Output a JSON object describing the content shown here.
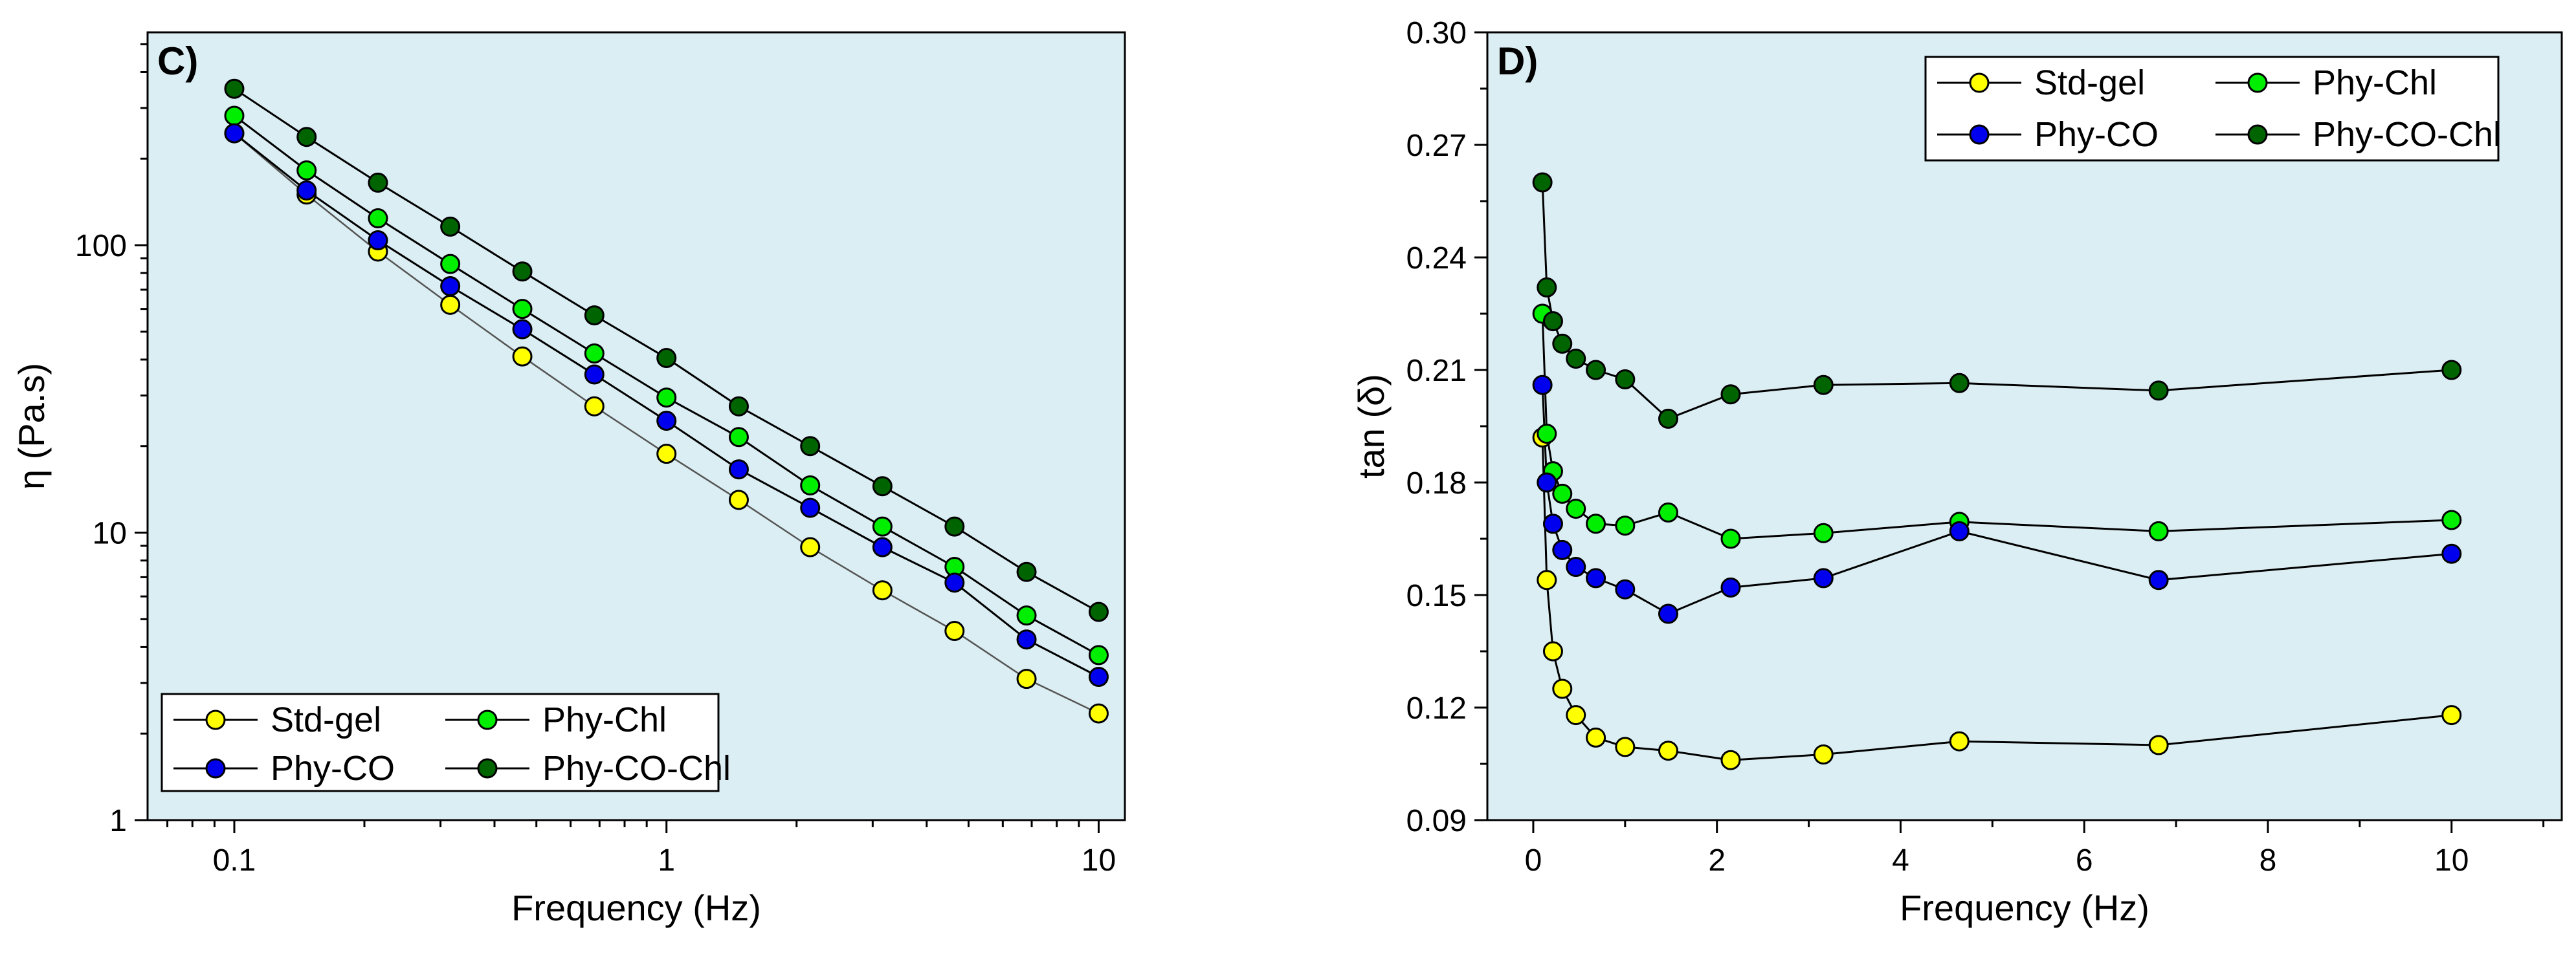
{
  "chart_data": [
    {
      "type": "line",
      "panel_label": "C)",
      "xlabel": "Frequency (Hz)",
      "ylabel": "η (Pa.s)",
      "x_scale": "log",
      "y_scale": "log",
      "xlim": [
        0.063,
        11.5
      ],
      "ylim": [
        1,
        550
      ],
      "x_ticks": [
        0.1,
        1,
        10
      ],
      "x_tick_labels": [
        "0.1",
        "1",
        "10"
      ],
      "y_ticks": [
        1,
        10,
        100
      ],
      "y_tick_labels": [
        "1",
        "10",
        "100"
      ],
      "legend_position": "bottom-left",
      "x": [
        0.1,
        0.147,
        0.215,
        0.316,
        0.464,
        0.681,
        1,
        1.47,
        2.15,
        3.16,
        4.64,
        6.81,
        10
      ],
      "series": [
        {
          "name": "Std-gel",
          "color": "#ffff00",
          "line": "thin",
          "values": [
            245,
            150,
            95,
            62,
            41,
            27.5,
            18.8,
            13,
            8.9,
            6.3,
            4.55,
            3.1,
            2.35
          ]
        },
        {
          "name": "Phy-Chl",
          "color": "#00ee00",
          "line": "normal",
          "values": [
            282,
            182,
            124,
            86,
            60,
            42,
            29.5,
            21.5,
            14.6,
            10.5,
            7.6,
            5.15,
            3.75
          ]
        },
        {
          "name": "Phy-CO",
          "color": "#0000ee",
          "line": "normal",
          "values": [
            245,
            155,
            104,
            72,
            51,
            35.5,
            24.5,
            16.6,
            12.2,
            8.9,
            6.7,
            4.25,
            3.15
          ]
        },
        {
          "name": "Phy-CO-Chl",
          "color": "#006400",
          "line": "normal",
          "values": [
            350,
            238,
            165,
            116,
            81,
            57,
            40.5,
            27.5,
            20,
            14.5,
            10.5,
            7.3,
            5.3
          ]
        }
      ]
    },
    {
      "type": "line",
      "panel_label": "D)",
      "xlabel": "Frequency (Hz)",
      "ylabel": "tan (δ)",
      "x_scale": "linear",
      "y_scale": "linear",
      "xlim": [
        -0.5,
        11.2
      ],
      "ylim": [
        0.09,
        0.3
      ],
      "x_ticks": [
        0,
        2,
        4,
        6,
        8,
        10
      ],
      "x_tick_labels": [
        "0",
        "2",
        "4",
        "6",
        "8",
        "10"
      ],
      "y_ticks": [
        0.09,
        0.12,
        0.15,
        0.18,
        0.21,
        0.24,
        0.27,
        0.3
      ],
      "y_tick_labels": [
        "0.09",
        "0.12",
        "0.15",
        "0.18",
        "0.21",
        "0.24",
        "0.27",
        "0.30"
      ],
      "legend_position": "top-right",
      "x": [
        0.1,
        0.147,
        0.215,
        0.316,
        0.464,
        0.681,
        1,
        1.47,
        2.15,
        3.16,
        4.64,
        6.81,
        10
      ],
      "series": [
        {
          "name": "Std-gel",
          "color": "#ffff00",
          "line": "normal",
          "values": [
            0.192,
            0.154,
            0.135,
            0.125,
            0.118,
            0.112,
            0.1095,
            0.1085,
            0.106,
            0.1075,
            0.111,
            0.11,
            0.118
          ]
        },
        {
          "name": "Phy-Chl",
          "color": "#00ee00",
          "line": "normal",
          "values": [
            0.225,
            0.193,
            0.183,
            0.177,
            0.173,
            0.169,
            0.1685,
            0.172,
            0.165,
            0.1665,
            0.1695,
            0.167,
            0.17
          ]
        },
        {
          "name": "Phy-CO",
          "color": "#0000ee",
          "line": "normal",
          "values": [
            0.206,
            0.18,
            0.169,
            0.162,
            0.1575,
            0.1545,
            0.1515,
            0.145,
            0.152,
            0.1545,
            0.167,
            0.154,
            0.161
          ]
        },
        {
          "name": "Phy-CO-Chl",
          "color": "#006400",
          "line": "normal",
          "values": [
            0.26,
            0.232,
            0.223,
            0.217,
            0.213,
            0.21,
            0.2075,
            0.197,
            0.2035,
            0.206,
            0.2065,
            0.2045,
            0.21
          ]
        }
      ]
    }
  ]
}
